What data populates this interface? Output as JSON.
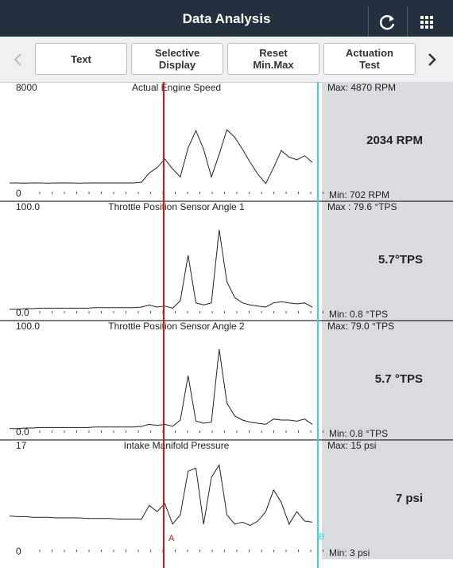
{
  "header": {
    "title": "Data Analysis"
  },
  "toolbar": {
    "buttons": [
      "Text",
      "Selective Display",
      "Reset Min.Max",
      "Actuation Test"
    ]
  },
  "cursors": [
    "A",
    "B"
  ],
  "panels": [
    {
      "title": "Actual Engine Speed",
      "ymax": 8000,
      "ymin": 0,
      "max_label": "Max: 4870 RPM",
      "current": "2034 RPM",
      "min_label": "Min: 702 RPM",
      "values": [
        840,
        840,
        830,
        840,
        840,
        830,
        840,
        840,
        840,
        830,
        840,
        840,
        840,
        840,
        840,
        840,
        840,
        900,
        1600,
        2000,
        2650,
        1900,
        1300,
        3500,
        4800,
        3400,
        1300,
        3000,
        4870,
        4300,
        3400,
        2400,
        1500,
        800,
        2000,
        3300,
        2800,
        2600,
        2900,
        2400
      ]
    },
    {
      "title": "Throttle Position Sensor Angle 1",
      "ymax": {
        "value": 100,
        "label": "100.0"
      },
      "ymin": {
        "value": 0,
        "label": "0.0"
      },
      "max_label": "Max : 79.6 °TPS",
      "current": "5.7°TPS",
      "min_label": "Min: 0.8 °TPS",
      "values": [
        4,
        4,
        4.5,
        4.5,
        5,
        5,
        5,
        5,
        5,
        5,
        5,
        5.5,
        5.5,
        5.5,
        5.5,
        5.5,
        5.5,
        6,
        8,
        6,
        7,
        5,
        12,
        55,
        10,
        8,
        10,
        79,
        30,
        15,
        10,
        8,
        7,
        6,
        10,
        11,
        10,
        9,
        10,
        6
      ]
    },
    {
      "title": "Throttle Position Sensor Angle 2",
      "ymax": {
        "value": 100,
        "label": "100.0"
      },
      "ymin": {
        "value": 0,
        "label": "0.0"
      },
      "max_label": "Max: 79.0 °TPS",
      "current": "5.7 °TPS",
      "min_label": "Min: 0.8 °TPS",
      "values": [
        4,
        4,
        4.5,
        4.5,
        5,
        5,
        5,
        5,
        5,
        5,
        5,
        5.5,
        5.5,
        5.5,
        5.5,
        5.5,
        5.5,
        6,
        8,
        7,
        8,
        6,
        12,
        54,
        11,
        9,
        10,
        79,
        28,
        16,
        12,
        10,
        9,
        8,
        13,
        12,
        12,
        11,
        13,
        8
      ]
    },
    {
      "title": "Intake Manifold Pressure",
      "ymax": 17,
      "ymin": 0,
      "max_label": "Max: 15 psi",
      "current": "7 psi",
      "min_label": "Min: 3 psi",
      "values": [
        5.8,
        5.7,
        5.7,
        5.6,
        5.6,
        5.6,
        5.5,
        5.5,
        5.5,
        5.5,
        5.4,
        5.4,
        5.4,
        5.4,
        5.3,
        5.3,
        5.3,
        5.3,
        7.5,
        6.5,
        7.8,
        4.5,
        6,
        13,
        13.5,
        4.5,
        12,
        14,
        6,
        4.5,
        4.8,
        4.3,
        5,
        6.5,
        10,
        8,
        4.5,
        6.5,
        5,
        4.8
      ]
    }
  ]
}
